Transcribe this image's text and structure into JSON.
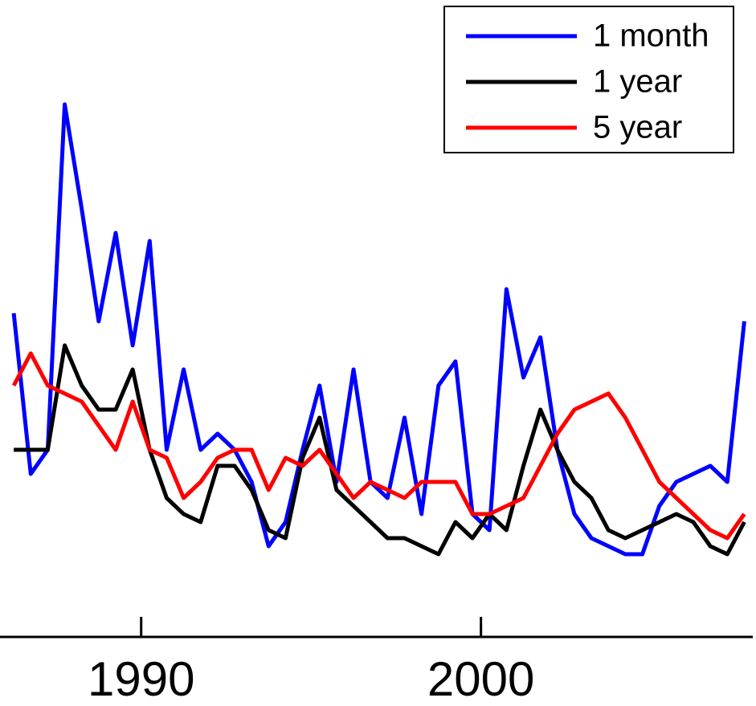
{
  "chart_data": {
    "type": "line",
    "x": [
      1986.25,
      1986.75,
      1987.25,
      1987.75,
      1988.25,
      1988.75,
      1989.25,
      1989.75,
      1990.25,
      1990.75,
      1991.25,
      1991.75,
      1992.25,
      1992.75,
      1993.25,
      1993.75,
      1994.25,
      1994.75,
      1995.25,
      1995.75,
      1996.25,
      1996.75,
      1997.25,
      1997.75,
      1998.25,
      1998.75,
      1999.25,
      1999.75,
      2000.25,
      2000.75,
      2001.25,
      2001.75,
      2002.25,
      2002.75,
      2003.25,
      2003.75,
      2004.25,
      2004.75,
      2005.25,
      2005.75,
      2006.25,
      2006.75,
      2007.25,
      2007.75
    ],
    "series": [
      {
        "name": "1 month",
        "color": "#0000ff",
        "values": [
          51.25,
          26.25,
          30,
          83.75,
          67.5,
          50,
          63.75,
          46.25,
          62.5,
          30,
          42.5,
          30,
          32.5,
          30,
          25,
          15,
          18.75,
          30,
          40,
          25,
          42.5,
          25,
          22.5,
          35,
          20,
          40,
          43.75,
          20,
          17.5,
          55,
          41.25,
          47.5,
          30,
          20,
          16.25,
          15,
          13.75,
          13.75,
          21.25,
          25,
          26.25,
          27.5,
          25,
          50
        ]
      },
      {
        "name": "1 year",
        "color": "#000000",
        "values": [
          30,
          30,
          30,
          46.25,
          40,
          36.25,
          36.25,
          42.5,
          30,
          22.5,
          20,
          18.75,
          27.5,
          27.5,
          23.75,
          17.5,
          16.25,
          28.75,
          35,
          23.75,
          21.25,
          18.75,
          16.25,
          16.25,
          15,
          13.75,
          18.75,
          16.25,
          20,
          17.5,
          27.5,
          36.25,
          30,
          25,
          22.5,
          17.5,
          16.25,
          17.5,
          18.75,
          20,
          18.75,
          15,
          13.75,
          18.75
        ]
      },
      {
        "name": "5 year",
        "color": "#ff0000",
        "values": [
          40,
          45,
          40,
          38.75,
          37.5,
          33.75,
          30,
          37.5,
          30,
          28.75,
          22.5,
          25,
          28.75,
          30,
          30,
          23.75,
          28.75,
          27.5,
          30,
          26.25,
          22.5,
          25,
          23.75,
          22.5,
          25,
          25,
          25,
          20,
          20,
          21.25,
          22.5,
          27.5,
          32.5,
          36.25,
          37.5,
          38.75,
          35,
          30,
          25,
          22.5,
          20,
          17.5,
          16.25,
          20
        ]
      }
    ],
    "xlim": [
      1986.2,
      2008.0
    ],
    "xticks": [
      1990,
      2000
    ],
    "ylim": [
      0,
      100
    ]
  }
}
